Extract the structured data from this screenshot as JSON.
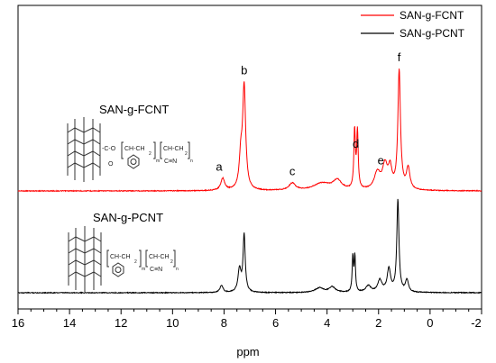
{
  "chart_data": {
    "type": "line",
    "title": "",
    "xlabel": "ppm",
    "ylabel": "",
    "x_reversed": true,
    "xlim": [
      16,
      -2
    ],
    "xticks": [
      16,
      14,
      12,
      10,
      8,
      6,
      4,
      2,
      0,
      -2
    ],
    "legend": {
      "placement": "top-right",
      "entries": [
        {
          "name": "SAN-g-FCNT",
          "color": "#ff0000"
        },
        {
          "name": "SAN-g-PCNT",
          "color": "#000000"
        }
      ]
    },
    "series": [
      {
        "name": "SAN-g-FCNT",
        "color": "#ff0000",
        "role": "upper",
        "baseline_ppm_range": [
          16,
          -2
        ],
        "peaks": [
          {
            "ppm": 8.05,
            "height": 0.1,
            "width": 0.09
          },
          {
            "ppm": 7.35,
            "height": 0.25,
            "width": 0.07
          },
          {
            "ppm": 7.22,
            "height": 0.86,
            "width": 0.07
          },
          {
            "ppm": 5.35,
            "height": 0.06,
            "width": 0.15
          },
          {
            "ppm": 4.2,
            "height": 0.06,
            "width": 0.4
          },
          {
            "ppm": 3.6,
            "height": 0.08,
            "width": 0.2
          },
          {
            "ppm": 2.93,
            "height": 0.49,
            "width": 0.035
          },
          {
            "ppm": 2.82,
            "height": 0.48,
            "width": 0.035
          },
          {
            "ppm": 2.05,
            "height": 0.14,
            "width": 0.14
          },
          {
            "ppm": 1.75,
            "height": 0.2,
            "width": 0.12
          },
          {
            "ppm": 1.55,
            "height": 0.16,
            "width": 0.08
          },
          {
            "ppm": 1.2,
            "height": 1.0,
            "width": 0.06
          },
          {
            "ppm": 0.85,
            "height": 0.18,
            "width": 0.08
          }
        ]
      },
      {
        "name": "SAN-g-PCNT",
        "color": "#000000",
        "role": "lower",
        "baseline_ppm_range": [
          16,
          -2
        ],
        "peaks": [
          {
            "ppm": 8.1,
            "height": 0.08,
            "width": 0.07
          },
          {
            "ppm": 7.4,
            "height": 0.25,
            "width": 0.07
          },
          {
            "ppm": 7.22,
            "height": 0.62,
            "width": 0.05
          },
          {
            "ppm": 4.3,
            "height": 0.05,
            "width": 0.2
          },
          {
            "ppm": 3.8,
            "height": 0.06,
            "width": 0.15
          },
          {
            "ppm": 3.0,
            "height": 0.38,
            "width": 0.03
          },
          {
            "ppm": 2.92,
            "height": 0.38,
            "width": 0.03
          },
          {
            "ppm": 2.4,
            "height": 0.07,
            "width": 0.12
          },
          {
            "ppm": 1.95,
            "height": 0.13,
            "width": 0.1
          },
          {
            "ppm": 1.6,
            "height": 0.25,
            "width": 0.08
          },
          {
            "ppm": 1.25,
            "height": 1.0,
            "width": 0.05
          },
          {
            "ppm": 0.9,
            "height": 0.13,
            "width": 0.07
          }
        ]
      }
    ],
    "annotations": [
      {
        "text": "a",
        "ppm": 8.05,
        "series": "SAN-g-FCNT"
      },
      {
        "text": "b",
        "ppm": 7.22,
        "series": "SAN-g-FCNT"
      },
      {
        "text": "c",
        "ppm": 5.35,
        "series": "SAN-g-FCNT"
      },
      {
        "text": "d",
        "ppm": 2.88,
        "series": "SAN-g-FCNT"
      },
      {
        "text": "e",
        "ppm": 1.95,
        "series": "SAN-g-FCNT"
      },
      {
        "text": "f",
        "ppm": 1.2,
        "series": "SAN-g-FCNT"
      }
    ],
    "sample_labels": [
      {
        "text": "SAN-g-FCNT",
        "series": "SAN-g-FCNT"
      },
      {
        "text": "SAN-g-PCNT",
        "series": "SAN-g-PCNT"
      }
    ]
  },
  "structures": {
    "fcnt": {
      "linker": "-C-O",
      "carbonyl": "O",
      "unit1": "CH-CH",
      "unit2": "CH-CH",
      "sub1": "2",
      "sub2": "2",
      "nitrile": "C≡N",
      "m": "m",
      "n": "n"
    },
    "pcnt": {
      "unit1": "CH-CH",
      "unit2": "CH-CH",
      "sub1": "2",
      "sub2": "2",
      "nitrile": "C≡N",
      "m": "m",
      "n": "n"
    }
  }
}
